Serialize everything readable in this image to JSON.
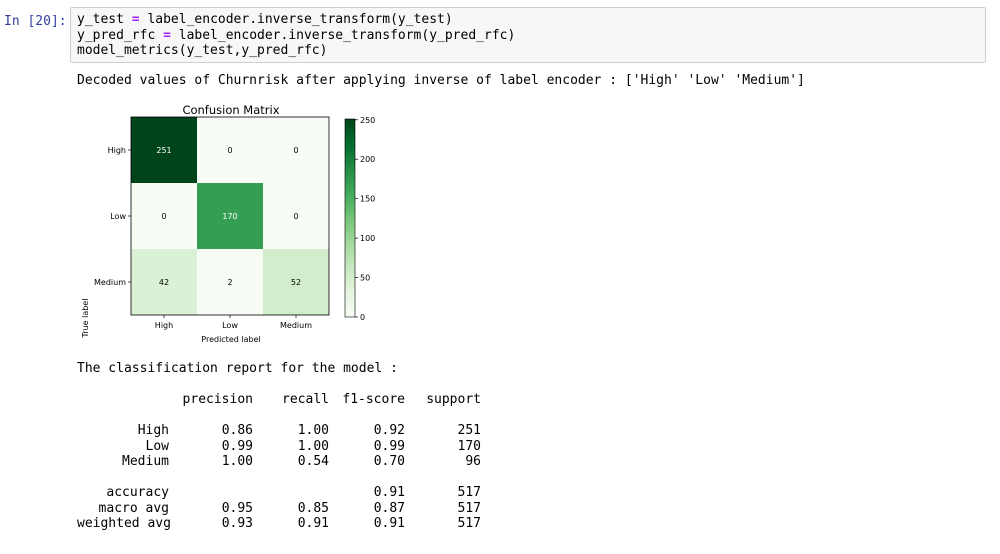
{
  "cell": {
    "prompt": "In [20]:",
    "code_lines": [
      {
        "a": "y_test ",
        "op": "=",
        "b": " label_encoder.inverse_transform(y_test)"
      },
      {
        "a": "y_pred_rfc ",
        "op": "=",
        "b": " label_encoder.inverse_transform(y_pred_rfc)"
      },
      {
        "a": "model_metrics(y_test,y_pred_rfc)",
        "op": "",
        "b": ""
      }
    ]
  },
  "output": {
    "decoded_line": "Decoded values of Churnrisk after applying inverse of label encoder : ['High' 'Low' 'Medium']",
    "report_heading": "The classification report for the model :",
    "report": {
      "headers": [
        "precision",
        "recall",
        "f1-score",
        "support"
      ],
      "class_rows": [
        {
          "label": "High",
          "precision": "0.86",
          "recall": "1.00",
          "f1": "0.92",
          "support": "251"
        },
        {
          "label": "Low",
          "precision": "0.99",
          "recall": "1.00",
          "f1": "0.99",
          "support": "170"
        },
        {
          "label": "Medium",
          "precision": "1.00",
          "recall": "0.54",
          "f1": "0.70",
          "support": "96"
        }
      ],
      "summary_rows": [
        {
          "label": "accuracy",
          "precision": "",
          "recall": "",
          "f1": "0.91",
          "support": "517"
        },
        {
          "label": "macro avg",
          "precision": "0.95",
          "recall": "0.85",
          "f1": "0.87",
          "support": "517"
        },
        {
          "label": "weighted avg",
          "precision": "0.93",
          "recall": "0.91",
          "f1": "0.91",
          "support": "517"
        }
      ]
    }
  },
  "chart_data": {
    "type": "heatmap",
    "title": "Confusion Matrix",
    "xlabel": "Predicted label",
    "ylabel": "True label",
    "x_categories": [
      "High",
      "Low",
      "Medium"
    ],
    "y_categories": [
      "High",
      "Low",
      "Medium"
    ],
    "values": [
      [
        251,
        0,
        0
      ],
      [
        0,
        170,
        0
      ],
      [
        42,
        2,
        52
      ]
    ],
    "colormap": "Greens",
    "color_low": "#f7fcf5",
    "color_high": "#00441b",
    "colorbar_ticks": [
      0,
      50,
      100,
      150,
      200,
      250
    ],
    "colorbar_range": [
      0,
      251
    ]
  }
}
